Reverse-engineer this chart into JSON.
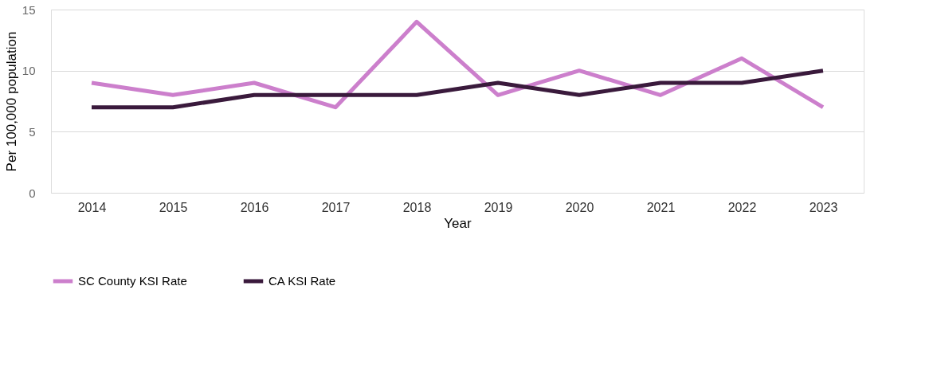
{
  "chart_data": {
    "type": "line",
    "xlabel": "Year",
    "ylabel": "Per 100,000 population",
    "categories": [
      "2014",
      "2015",
      "2016",
      "2017",
      "2018",
      "2019",
      "2020",
      "2021",
      "2022",
      "2023"
    ],
    "series": [
      {
        "name": "SC County KSI Rate",
        "color": "#cc7fcc",
        "values": [
          9,
          8,
          9,
          7,
          14,
          8,
          10,
          8,
          11,
          7
        ]
      },
      {
        "name": "CA KSI Rate",
        "color": "#3a1a3c",
        "values": [
          7,
          7,
          8,
          8,
          8,
          9,
          8,
          9,
          9,
          10
        ]
      }
    ],
    "ylim": [
      0,
      15
    ],
    "yticks": [
      0,
      5,
      10,
      15
    ],
    "grid": "y",
    "legend": "bottom",
    "marker": "none",
    "line_style": "solid"
  }
}
